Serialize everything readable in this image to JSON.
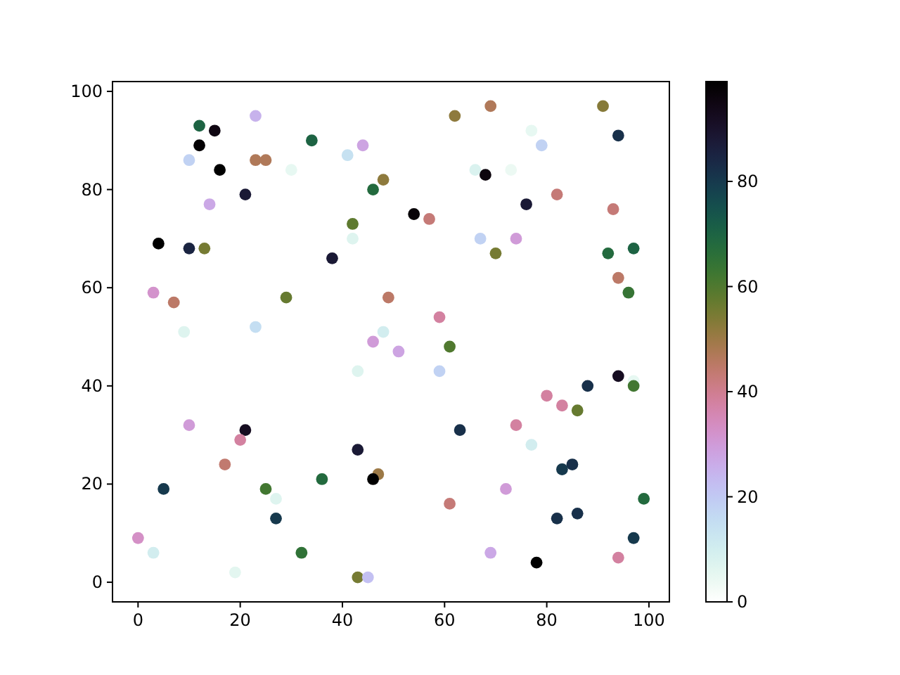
{
  "chart_data": {
    "type": "scatter",
    "marker": "circle",
    "xlim": [
      -5,
      104
    ],
    "ylim": [
      -4,
      102
    ],
    "xticks": [
      0,
      20,
      40,
      60,
      80,
      100
    ],
    "yticks": [
      0,
      20,
      40,
      60,
      80,
      100
    ],
    "clim": [
      0,
      99
    ],
    "cticks": [
      0,
      20,
      40,
      60,
      80
    ],
    "x": [
      12,
      15,
      23,
      12,
      34,
      44,
      10,
      23,
      25,
      30,
      41,
      16,
      48,
      46,
      21,
      14,
      42,
      42,
      4,
      10,
      13,
      38,
      3,
      7,
      29,
      49,
      9,
      23,
      48,
      46,
      62,
      69,
      91,
      94,
      77,
      79,
      66,
      68,
      73,
      82,
      76,
      93,
      54,
      57,
      67,
      74,
      70,
      92,
      97,
      94,
      96,
      59,
      61,
      51,
      43,
      10,
      21,
      20,
      17,
      43,
      47,
      46,
      36,
      5,
      25,
      27,
      27,
      0,
      3,
      32,
      19,
      43,
      45,
      59,
      94,
      97,
      97,
      88,
      80,
      83,
      86,
      63,
      74,
      77,
      85,
      83,
      72,
      61,
      99,
      82,
      86,
      97,
      69,
      78,
      94
    ],
    "values": [
      93,
      92,
      95,
      89,
      90,
      89,
      86,
      86,
      86,
      84,
      87,
      84,
      82,
      80,
      79,
      77,
      73,
      70,
      69,
      68,
      68,
      66,
      59,
      57,
      58,
      58,
      51,
      52,
      51,
      49,
      95,
      97,
      97,
      91,
      92,
      89,
      84,
      83,
      84,
      79,
      77,
      76,
      75,
      74,
      70,
      70,
      67,
      67,
      68,
      62,
      59,
      54,
      48,
      47,
      43,
      32,
      31,
      29,
      24,
      27,
      22,
      21,
      21,
      19,
      19,
      17,
      13,
      9,
      6,
      6,
      2,
      1,
      1,
      43,
      42,
      41,
      40,
      40,
      38,
      36,
      35,
      31,
      32,
      28,
      24,
      23,
      19,
      16,
      17,
      13,
      14,
      9,
      6,
      4,
      5
    ],
    "cvalues": [
      70,
      95,
      25,
      98,
      70,
      28,
      18,
      47,
      47,
      5,
      14,
      99,
      52,
      68,
      88,
      27,
      58,
      7,
      99,
      85,
      55,
      88,
      32,
      45,
      57,
      45,
      7,
      15,
      10,
      30,
      52,
      47,
      53,
      82,
      5,
      18,
      8,
      96,
      4,
      43,
      88,
      43,
      97,
      43,
      18,
      30,
      55,
      68,
      70,
      45,
      64,
      38,
      60,
      28,
      7,
      30,
      92,
      38,
      44,
      88,
      50,
      99,
      68,
      80,
      62,
      7,
      80,
      33,
      10,
      65,
      6,
      55,
      22,
      18,
      92,
      5,
      62,
      82,
      38,
      38,
      57,
      82,
      38,
      10,
      82,
      80,
      30,
      43,
      68,
      82,
      82,
      80,
      27,
      99,
      38
    ]
  }
}
